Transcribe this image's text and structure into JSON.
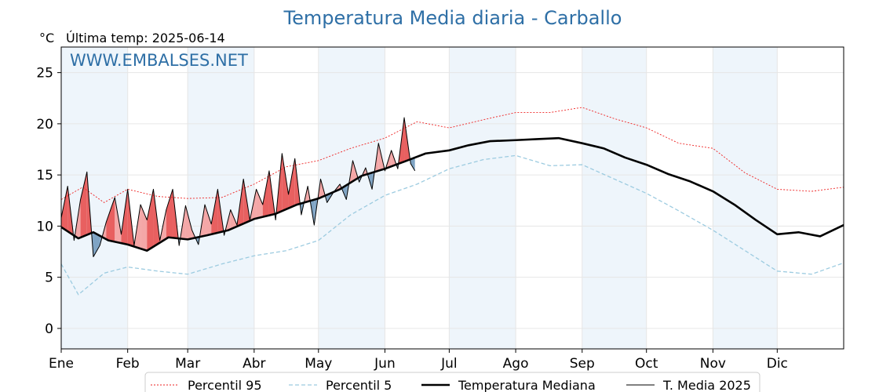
{
  "chart_data": {
    "type": "line",
    "title": "Temperatura Media diaria - Carballo",
    "ylabel": "°C",
    "subtitle": "Última temp: 2025-06-14",
    "watermark": "WWW.EMBALSES.NET",
    "xlim": [
      0,
      365
    ],
    "ylim": [
      -2,
      27.5
    ],
    "yticks": [
      0,
      5,
      10,
      15,
      20,
      25
    ],
    "month_ticks": [
      {
        "label": "Ene",
        "day": 0
      },
      {
        "label": "Feb",
        "day": 31
      },
      {
        "label": "Mar",
        "day": 59
      },
      {
        "label": "Abr",
        "day": 90
      },
      {
        "label": "May",
        "day": 120
      },
      {
        "label": "Jun",
        "day": 151
      },
      {
        "label": "Jul",
        "day": 181
      },
      {
        "label": "Ago",
        "day": 212
      },
      {
        "label": "Sep",
        "day": 243
      },
      {
        "label": "Oct",
        "day": 273
      },
      {
        "label": "Nov",
        "day": 304
      },
      {
        "label": "Dic",
        "day": 334
      }
    ],
    "shaded_month_bands": true,
    "grid": true,
    "legend_position": "bottom-center",
    "colors": {
      "p95": "#ee2222",
      "p5": "#9ccbe0",
      "median": "#000000",
      "current": "#000000",
      "above_fill": "#f4a7a7",
      "above_fill_strong": "#e86060",
      "below_fill": "#7fa4c4",
      "title": "#2e6fa6",
      "band": "#eef5fb"
    },
    "series": [
      {
        "key": "p95",
        "name": "Percentil 95",
        "style": "dotted",
        "x": [
          0,
          10,
          20,
          31,
          45,
          59,
          75,
          90,
          105,
          120,
          135,
          151,
          166,
          181,
          197,
          212,
          228,
          243,
          258,
          273,
          288,
          304,
          319,
          334,
          350,
          365
        ],
        "values": [
          12.6,
          13.8,
          12.3,
          13.6,
          12.9,
          12.7,
          12.8,
          14.1,
          15.8,
          16.4,
          17.6,
          18.6,
          20.2,
          19.6,
          20.4,
          21.1,
          21.1,
          21.6,
          20.5,
          19.6,
          18.1,
          17.6,
          15.2,
          13.6,
          13.4,
          13.8
        ]
      },
      {
        "key": "p5",
        "name": "Percentil 5",
        "style": "dashed",
        "x": [
          0,
          8,
          20,
          31,
          45,
          59,
          75,
          90,
          105,
          120,
          135,
          151,
          166,
          181,
          197,
          212,
          228,
          243,
          258,
          273,
          288,
          304,
          319,
          334,
          350,
          365
        ],
        "values": [
          6.3,
          3.3,
          5.4,
          6.0,
          5.6,
          5.3,
          6.3,
          7.1,
          7.6,
          8.6,
          11.1,
          13.0,
          14.1,
          15.6,
          16.5,
          16.9,
          15.9,
          16.0,
          14.6,
          13.2,
          11.5,
          9.6,
          7.6,
          5.6,
          5.3,
          6.4
        ]
      },
      {
        "key": "median",
        "name": "Temperatura Mediana",
        "style": "solid-thick",
        "x": [
          0,
          8,
          15,
          22,
          31,
          40,
          50,
          59,
          68,
          78,
          90,
          100,
          110,
          120,
          130,
          140,
          151,
          160,
          170,
          181,
          190,
          200,
          212,
          222,
          232,
          243,
          253,
          263,
          273,
          283,
          293,
          304,
          314,
          324,
          334,
          344,
          354,
          365
        ],
        "values": [
          9.9,
          8.8,
          9.4,
          8.6,
          8.2,
          7.6,
          8.9,
          8.7,
          9.1,
          9.6,
          10.7,
          11.2,
          12.1,
          12.7,
          13.6,
          14.9,
          15.6,
          16.3,
          17.1,
          17.4,
          17.9,
          18.3,
          18.4,
          18.5,
          18.6,
          18.1,
          17.6,
          16.7,
          16.0,
          15.1,
          14.4,
          13.4,
          12.1,
          10.6,
          9.2,
          9.4,
          9.0,
          10.1
        ]
      },
      {
        "key": "current",
        "name": "T. Media 2025",
        "style": "solid-thin",
        "x": [
          0,
          3,
          6,
          9,
          12,
          15,
          18,
          21,
          25,
          28,
          31,
          34,
          37,
          40,
          43,
          46,
          49,
          52,
          55,
          58,
          61,
          64,
          67,
          70,
          73,
          76,
          79,
          82,
          85,
          88,
          91,
          94,
          97,
          100,
          103,
          106,
          109,
          112,
          115,
          118,
          121,
          124,
          127,
          130,
          133,
          136,
          139,
          142,
          145,
          148,
          151,
          154,
          157,
          160,
          163,
          165
        ],
        "values": [
          10.8,
          13.9,
          8.6,
          12.6,
          15.3,
          7.0,
          8.1,
          10.4,
          12.8,
          9.2,
          13.6,
          8.1,
          12.1,
          10.6,
          13.6,
          8.6,
          11.6,
          13.6,
          8.1,
          12.0,
          9.6,
          8.2,
          12.1,
          10.2,
          13.6,
          9.1,
          11.6,
          10.1,
          14.6,
          10.6,
          13.6,
          12.1,
          15.4,
          10.6,
          17.1,
          13.1,
          16.6,
          11.1,
          13.9,
          10.1,
          14.6,
          12.3,
          13.3,
          14.1,
          12.6,
          16.4,
          14.3,
          15.7,
          13.6,
          18.1,
          15.4,
          17.4,
          15.6,
          20.6,
          16.1,
          15.4
        ]
      }
    ],
    "legend": [
      {
        "key": "p95",
        "label": "Percentil 95"
      },
      {
        "key": "p5",
        "label": "Percentil 5"
      },
      {
        "key": "median",
        "label": "Temperatura Mediana"
      },
      {
        "key": "current",
        "label": "T. Media 2025"
      }
    ]
  }
}
